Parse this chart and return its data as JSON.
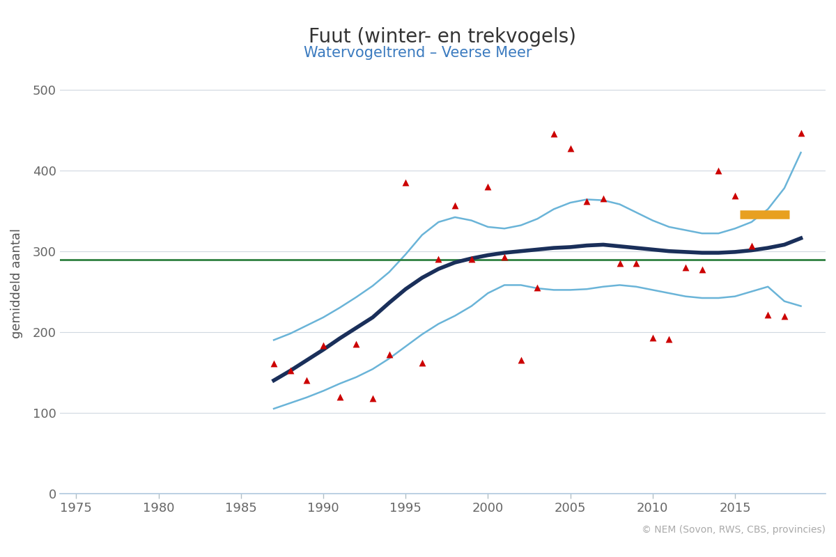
{
  "title": "Fuut (winter- en trekvogels)",
  "subtitle": "Watervogeltrend – Veerse Meer",
  "ylabel": "gemiddeld aantal",
  "xlim": [
    1974,
    2020.5
  ],
  "ylim": [
    0,
    520
  ],
  "yticks": [
    0,
    100,
    200,
    300,
    400,
    500
  ],
  "xticks": [
    1975,
    1980,
    1985,
    1990,
    1995,
    2000,
    2005,
    2010,
    2015
  ],
  "copyright_text": "© NEM (Sovon, RWS, CBS, provincies)",
  "title_color": "#333333",
  "subtitle_color": "#3a7abf",
  "ylabel_color": "#555555",
  "grid_color": "#d0d8e0",
  "background_color": "#ffffff",
  "trend_line_color": "#1a2f5a",
  "ci_line_color": "#6ab4d8",
  "reference_line_color": "#2e8040",
  "orange_bar_color": "#e8a020",
  "scatter_color": "#cc0000",
  "trend_x": [
    1987,
    1988,
    1989,
    1990,
    1991,
    1992,
    1993,
    1994,
    1995,
    1996,
    1997,
    1998,
    1999,
    2000,
    2001,
    2002,
    2003,
    2004,
    2005,
    2006,
    2007,
    2008,
    2009,
    2010,
    2011,
    2012,
    2013,
    2014,
    2015,
    2016,
    2017,
    2018,
    2019
  ],
  "trend_y": [
    140,
    152,
    165,
    178,
    192,
    205,
    218,
    236,
    253,
    267,
    278,
    286,
    291,
    295,
    298,
    300,
    302,
    304,
    305,
    307,
    308,
    306,
    304,
    302,
    300,
    299,
    298,
    298,
    299,
    301,
    304,
    308,
    316
  ],
  "ci_upper": [
    190,
    198,
    208,
    218,
    230,
    243,
    257,
    274,
    296,
    320,
    336,
    342,
    338,
    330,
    328,
    332,
    340,
    352,
    360,
    364,
    363,
    358,
    348,
    338,
    330,
    326,
    322,
    322,
    328,
    336,
    352,
    378,
    422
  ],
  "ci_lower": [
    105,
    112,
    119,
    127,
    136,
    144,
    154,
    167,
    182,
    197,
    210,
    220,
    232,
    248,
    258,
    258,
    254,
    252,
    252,
    253,
    256,
    258,
    256,
    252,
    248,
    244,
    242,
    242,
    244,
    250,
    256,
    238,
    232
  ],
  "reference_y": 289,
  "scatter_x": [
    1987,
    1988,
    1989,
    1990,
    1991,
    1992,
    1993,
    1994,
    1995,
    1996,
    1997,
    1998,
    1999,
    2000,
    2001,
    2002,
    2003,
    2004,
    2005,
    2006,
    2007,
    2008,
    2009,
    2010,
    2011,
    2012,
    2013,
    2014,
    2015,
    2016,
    2017,
    2018,
    2019
  ],
  "scatter_y": [
    161,
    152,
    140,
    183,
    120,
    185,
    118,
    172,
    385,
    162,
    290,
    357,
    290,
    380,
    293,
    165,
    255,
    445,
    427,
    362,
    365,
    285,
    285,
    193,
    191,
    280,
    277,
    400,
    369,
    307,
    221,
    220,
    446
  ],
  "orange_x_start": 2015.3,
  "orange_x_end": 2018.3,
  "orange_y": 345,
  "title_fontsize": 20,
  "subtitle_fontsize": 15,
  "axis_fontsize": 13,
  "tick_fontsize": 13,
  "copyright_fontsize": 10
}
